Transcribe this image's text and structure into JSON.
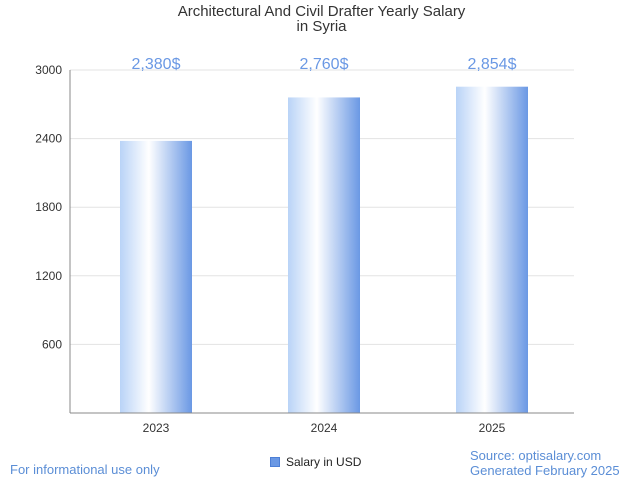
{
  "chart_data": {
    "type": "bar",
    "title": "Architectural And Civil Drafter Yearly Salary",
    "subtitle": "in Syria",
    "categories": [
      "2023",
      "2024",
      "2025"
    ],
    "series": [
      {
        "name": "Salary in USD",
        "values": [
          2380,
          2760,
          2854
        ]
      }
    ],
    "value_labels": [
      "2,380$",
      "2,760$",
      "2,854$"
    ],
    "y_ticks": [
      600,
      1200,
      1800,
      2400,
      3000
    ],
    "ylim": [
      0,
      3000
    ],
    "grid": true,
    "legend_position": "bottom-center",
    "colors": {
      "bar_edge": "#6a98e4",
      "bar_mid": "#ffffff",
      "bar_light": "#b9d3f7",
      "label": "#6a98e4"
    }
  },
  "footer": {
    "left": "For informational use only",
    "source": "Source: optisalary.com",
    "generated": "Generated February 2025"
  }
}
